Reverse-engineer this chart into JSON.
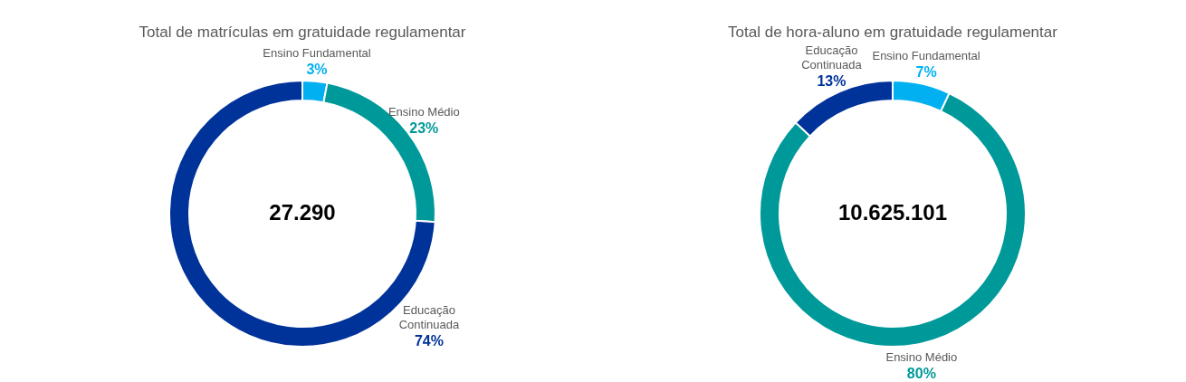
{
  "chart_data": [
    {
      "type": "donut",
      "title": "Total de matrículas em gratuidade regulamentar",
      "categories": [
        "Ensino Fundamental",
        "Ensino Médio",
        "Educação Continuada"
      ],
      "values": [
        3,
        23,
        74
      ],
      "colors": [
        "#00b0f0",
        "#009999",
        "#003399"
      ],
      "value_labels": [
        "3%",
        "23%",
        "74%"
      ],
      "annotations": [
        "27.290"
      ],
      "legend": false
    },
    {
      "type": "donut",
      "title": "Total de hora-aluno em gratuidade regulamentar",
      "categories": [
        "Ensino Fundamental",
        "Ensino Médio",
        "Educação Continuada"
      ],
      "values": [
        7,
        80,
        13
      ],
      "colors": [
        "#00b0f0",
        "#009999",
        "#003399"
      ],
      "value_labels": [
        "7%",
        "80%",
        "13%"
      ],
      "annotations": [
        "10.625.101"
      ],
      "legend": false
    }
  ]
}
